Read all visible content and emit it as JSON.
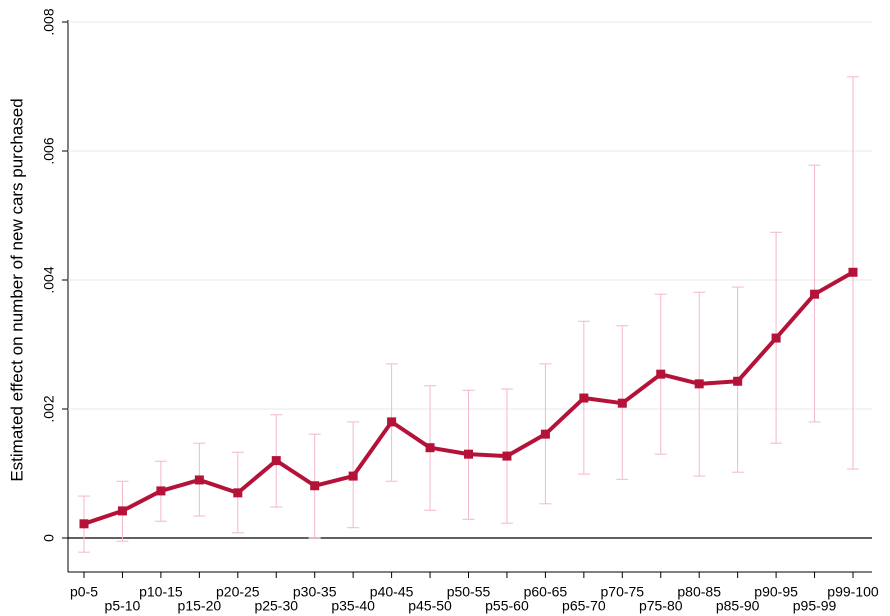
{
  "chart_data": {
    "type": "line",
    "y_label": "Estimated effect on number of new cars purchased",
    "categories": [
      "p0-5",
      "p5-10",
      "p10-15",
      "p15-20",
      "p20-25",
      "p25-30",
      "p30-35",
      "p35-40",
      "p40-45",
      "p45-50",
      "p50-55",
      "p55-60",
      "p60-65",
      "p65-70",
      "p70-75",
      "p75-80",
      "p80-85",
      "p85-90",
      "p90-95",
      "p95-99",
      "p99-100"
    ],
    "series": [
      {
        "color": "#b5123a",
        "error_color": "#f2b9c6",
        "values": [
          0.00022,
          0.00042,
          0.00073,
          0.0009,
          0.0007,
          0.0012,
          0.00081,
          0.00096,
          0.0018,
          0.0014,
          0.0013,
          0.00127,
          0.00161,
          0.00217,
          0.00209,
          0.00254,
          0.00239,
          0.00243,
          0.0031,
          0.00378,
          0.00412
        ],
        "lower": [
          -0.00022,
          -5e-05,
          0.00026,
          0.00034,
          8e-05,
          0.00048,
          0.0,
          0.00016,
          0.00088,
          0.00043,
          0.00029,
          0.00023,
          0.00053,
          0.00099,
          0.00091,
          0.0013,
          0.00096,
          0.00102,
          0.00147,
          0.0018,
          0.00107
        ],
        "upper": [
          0.00065,
          0.00088,
          0.00119,
          0.00147,
          0.00133,
          0.00191,
          0.00161,
          0.0018,
          0.0027,
          0.00236,
          0.00229,
          0.00231,
          0.0027,
          0.00336,
          0.00329,
          0.00378,
          0.00381,
          0.00389,
          0.00474,
          0.00578,
          0.00715
        ]
      }
    ],
    "ylim": [
      0,
      0.008
    ],
    "yticks": [
      0,
      {
        "value": 0.002,
        "label": ".002"
      },
      {
        "value": 0.004,
        "label": ".004"
      },
      {
        "value": 0.006,
        "label": ".006"
      },
      {
        "value": 0.008,
        "label": ".008"
      }
    ],
    "grid": true
  }
}
